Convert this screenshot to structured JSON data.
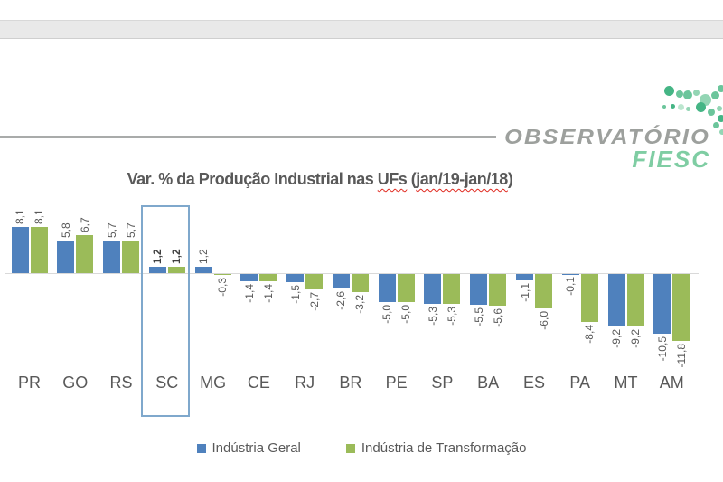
{
  "logo": {
    "brand": "OBSERVATÓRIO",
    "unit": "FIESC",
    "brand_color": "#9da09d",
    "unit_color": "#7fcda3",
    "dot_colors": [
      "#45b585",
      "#6bc59b",
      "#93d5b4",
      "#bce6cf"
    ]
  },
  "title": {
    "full": "Var. % da Produção Industrial nas UFs (jan/19-jan/18)",
    "prefix": "Var. % da Produção Industrial nas ",
    "spellcheck_word_1": "UFs",
    "mid": " (",
    "spellcheck_word_2": "jan/19-jan/18",
    "suffix": ")",
    "color": "#595959",
    "spellcheck_underline_color": "#e0281e"
  },
  "chart_data": {
    "type": "bar",
    "title": "Var. % da Produção Industrial nas UFs (jan/19-jan/18)",
    "categories": [
      "PR",
      "GO",
      "RS",
      "SC",
      "MG",
      "CE",
      "RJ",
      "BR",
      "PE",
      "SP",
      "BA",
      "ES",
      "PA",
      "MT",
      "AM"
    ],
    "series": [
      {
        "name": "Indústria Geral",
        "color": "#4f81bd",
        "values": [
          8.1,
          5.8,
          5.7,
          1.2,
          1.2,
          -1.4,
          -1.5,
          -2.6,
          -5.0,
          -5.3,
          -5.5,
          -1.1,
          -0.1,
          -9.2,
          -10.5
        ]
      },
      {
        "name": "Indústria de Transformação",
        "color": "#9bbb59",
        "values": [
          8.1,
          6.7,
          5.7,
          1.2,
          -0.3,
          -1.4,
          -2.7,
          -3.2,
          -5.0,
          -5.3,
          -5.6,
          -6.0,
          -8.4,
          -9.2,
          -11.8
        ]
      }
    ],
    "value_label_format": "comma_decimal_1dp",
    "highlighted_category": "SC",
    "highlight_border_color": "#7fa8cc",
    "axis_color": "#d9d9d9",
    "label_color": "#595959",
    "ylim": [
      -13,
      9
    ],
    "grid": false,
    "legend_position": "bottom"
  }
}
